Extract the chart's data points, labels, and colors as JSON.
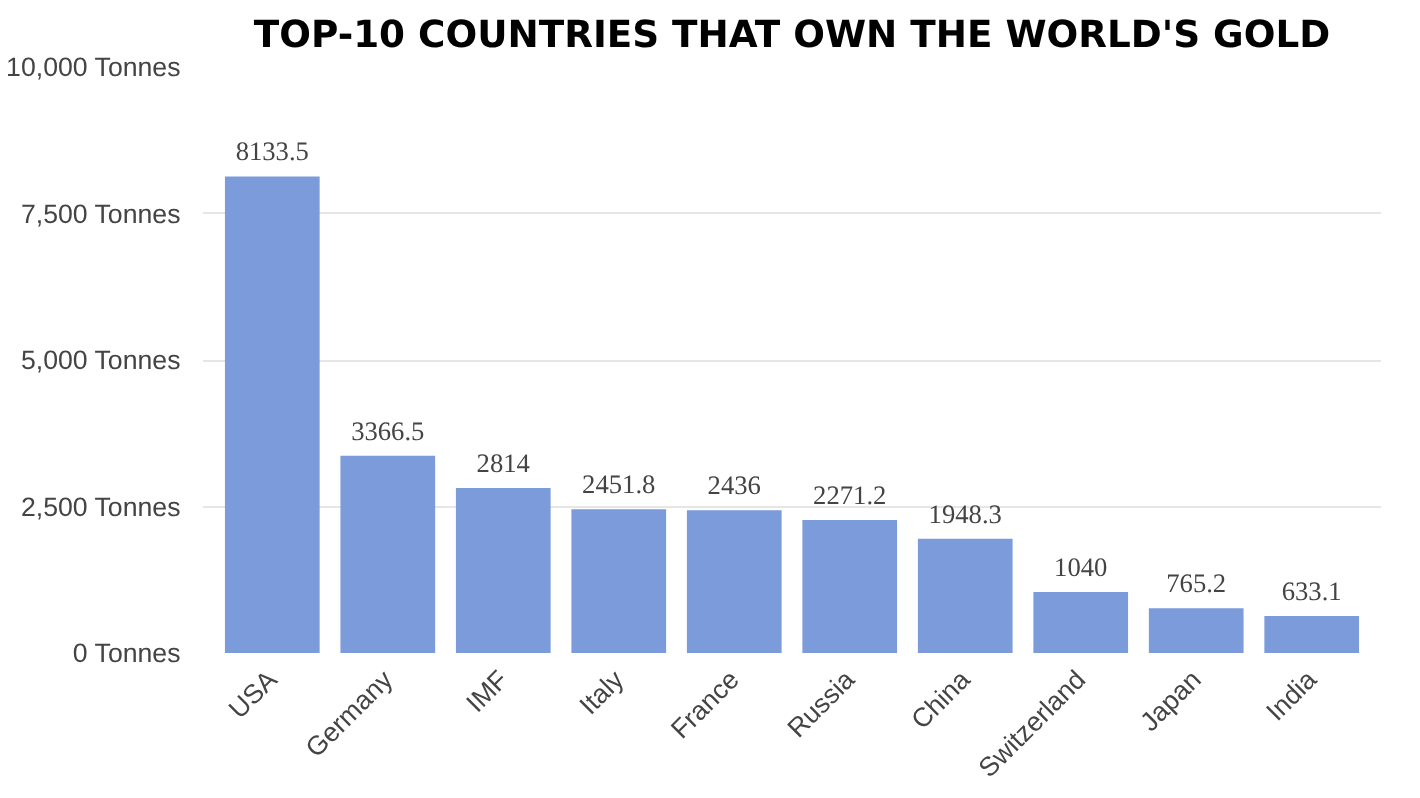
{
  "chart_data": {
    "type": "bar",
    "title": "TOP-10 COUNTRIES THAT OWN THE WORLD'S GOLD",
    "categories": [
      "USA",
      "Germany",
      "IMF",
      "Italy",
      "France",
      "Russia",
      "China",
      "Switzerland",
      "Japan",
      "India"
    ],
    "values": [
      8133.5,
      3366.5,
      2814,
      2451.8,
      2436,
      2271.2,
      1948.3,
      1040,
      765.2,
      633.1
    ],
    "color": "#7b9bdb",
    "ylim": [
      0,
      10000
    ],
    "yticks": [
      {
        "value": 0,
        "label": "0 Tonnes"
      },
      {
        "value": 2500,
        "label": "2,500 Tonnes"
      },
      {
        "value": 5000,
        "label": "5,000 Tonnes"
      },
      {
        "value": 7500,
        "label": "7,500 Tonnes"
      },
      {
        "value": 10000,
        "label": "10,000 Tonnes"
      }
    ],
    "grid": "y",
    "data_labels": true
  }
}
